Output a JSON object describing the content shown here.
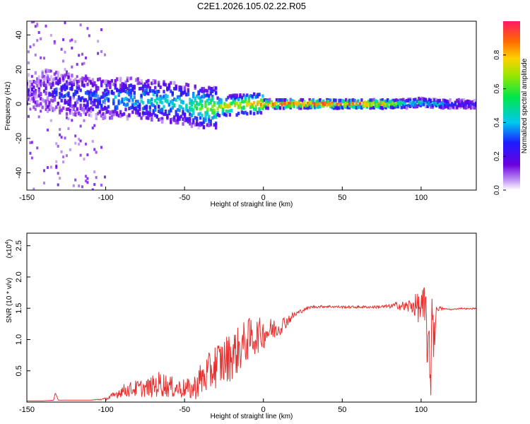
{
  "title": "C2E1.2026.105.02.22.R05",
  "chart_data": [
    {
      "type": "heatmap",
      "name": "spectrogram",
      "xlabel": "Height of straight line (km)",
      "ylabel": "Frequency (Hz)",
      "xlim": [
        -150,
        135
      ],
      "ylim": [
        -50,
        48
      ],
      "xticks": [
        -150,
        -100,
        -50,
        0,
        50,
        100
      ],
      "yticks": [
        -40,
        -20,
        0,
        20,
        40
      ],
      "colorbar": {
        "label": "Normalized spectral amplitude",
        "range": [
          0,
          1
        ],
        "ticks": [
          "0.0",
          "0.2",
          "0.4",
          "0.6",
          "0.8"
        ],
        "tick_values": [
          0,
          0.2,
          0.4,
          0.6,
          0.8
        ]
      },
      "ridge": {
        "x": [
          -140,
          -130,
          -120,
          -110,
          -100,
          -90,
          -80,
          -70,
          -60,
          -50,
          -40,
          -30,
          -20,
          -10,
          0,
          10,
          20,
          30,
          40,
          50,
          60,
          70,
          80,
          90,
          100,
          110,
          120,
          135
        ],
        "freq": [
          8,
          7,
          5,
          4,
          3,
          3,
          3,
          2,
          1,
          0,
          -2,
          -2,
          -1,
          0,
          0,
          0,
          0,
          0,
          0,
          0,
          0,
          0,
          0,
          0,
          1,
          0,
          0,
          0
        ],
        "amplitude": [
          0.15,
          0.3,
          0.3,
          0.3,
          0.35,
          0.4,
          0.4,
          0.45,
          0.45,
          0.45,
          0.6,
          0.7,
          0.75,
          0.8,
          0.9,
          0.95,
          0.95,
          0.95,
          0.95,
          0.95,
          0.95,
          0.9,
          0.85,
          0.5,
          0.5,
          0.45,
          0.3,
          0.3
        ]
      }
    },
    {
      "type": "line",
      "name": "snr",
      "xlabel": "Height of straight line (km)",
      "ylabel": "SNR (10 * v/v)",
      "y_multiplier": "(x10",
      "y_multiplier_exp": "4",
      "xlim": [
        -150,
        135
      ],
      "ylim": [
        0,
        2.7
      ],
      "xticks": [
        -150,
        -100,
        -50,
        0,
        50,
        100
      ],
      "yticks": [
        "0.5",
        "1.0",
        "1.5",
        "2.0",
        "2.5"
      ],
      "ytick_values": [
        0.5,
        1.0,
        1.5,
        2.0,
        2.5
      ],
      "series": [
        {
          "name": "SNR",
          "color": "#e8302f",
          "x": [
            -150,
            -140,
            -133,
            -132,
            -130,
            -120,
            -110,
            -100,
            -95,
            -90,
            -85,
            -80,
            -75,
            -70,
            -65,
            -60,
            -55,
            -50,
            -45,
            -40,
            -35,
            -30,
            -25,
            -20,
            -15,
            -10,
            -5,
            0,
            5,
            10,
            15,
            20,
            25,
            30,
            40,
            50,
            60,
            70,
            80,
            85,
            90,
            95,
            100,
            103,
            105,
            106,
            107,
            108,
            110,
            115,
            120,
            125,
            130,
            135
          ],
          "y": [
            0.02,
            0.02,
            0.03,
            0.15,
            0.03,
            0.03,
            0.03,
            0.05,
            0.1,
            0.18,
            0.2,
            0.22,
            0.22,
            0.25,
            0.3,
            0.25,
            0.22,
            0.22,
            0.2,
            0.35,
            0.45,
            0.6,
            0.65,
            0.75,
            0.85,
            1.0,
            1.05,
            1.1,
            1.15,
            1.2,
            1.3,
            1.4,
            1.47,
            1.52,
            1.53,
            1.52,
            1.52,
            1.52,
            1.53,
            1.55,
            1.52,
            1.55,
            1.5,
            1.4,
            0.6,
            0.3,
            1.8,
            1.0,
            1.5,
            1.49,
            1.48,
            1.5,
            1.49,
            1.5
          ],
          "noise": [
            0,
            0,
            0,
            0,
            0,
            0,
            0,
            0.02,
            0.06,
            0.1,
            0.12,
            0.14,
            0.14,
            0.18,
            0.22,
            0.18,
            0.16,
            0.16,
            0.18,
            0.28,
            0.32,
            0.38,
            0.4,
            0.4,
            0.38,
            0.35,
            0.3,
            0.25,
            0.2,
            0.15,
            0.1,
            0.05,
            0.03,
            0.02,
            0.02,
            0.02,
            0.02,
            0.02,
            0.03,
            0.06,
            0.1,
            0.15,
            0.3,
            0.5,
            0.6,
            0.6,
            0.6,
            0.4,
            0.05,
            0.01,
            0.01,
            0.01,
            0.01,
            0.01
          ]
        }
      ]
    }
  ]
}
